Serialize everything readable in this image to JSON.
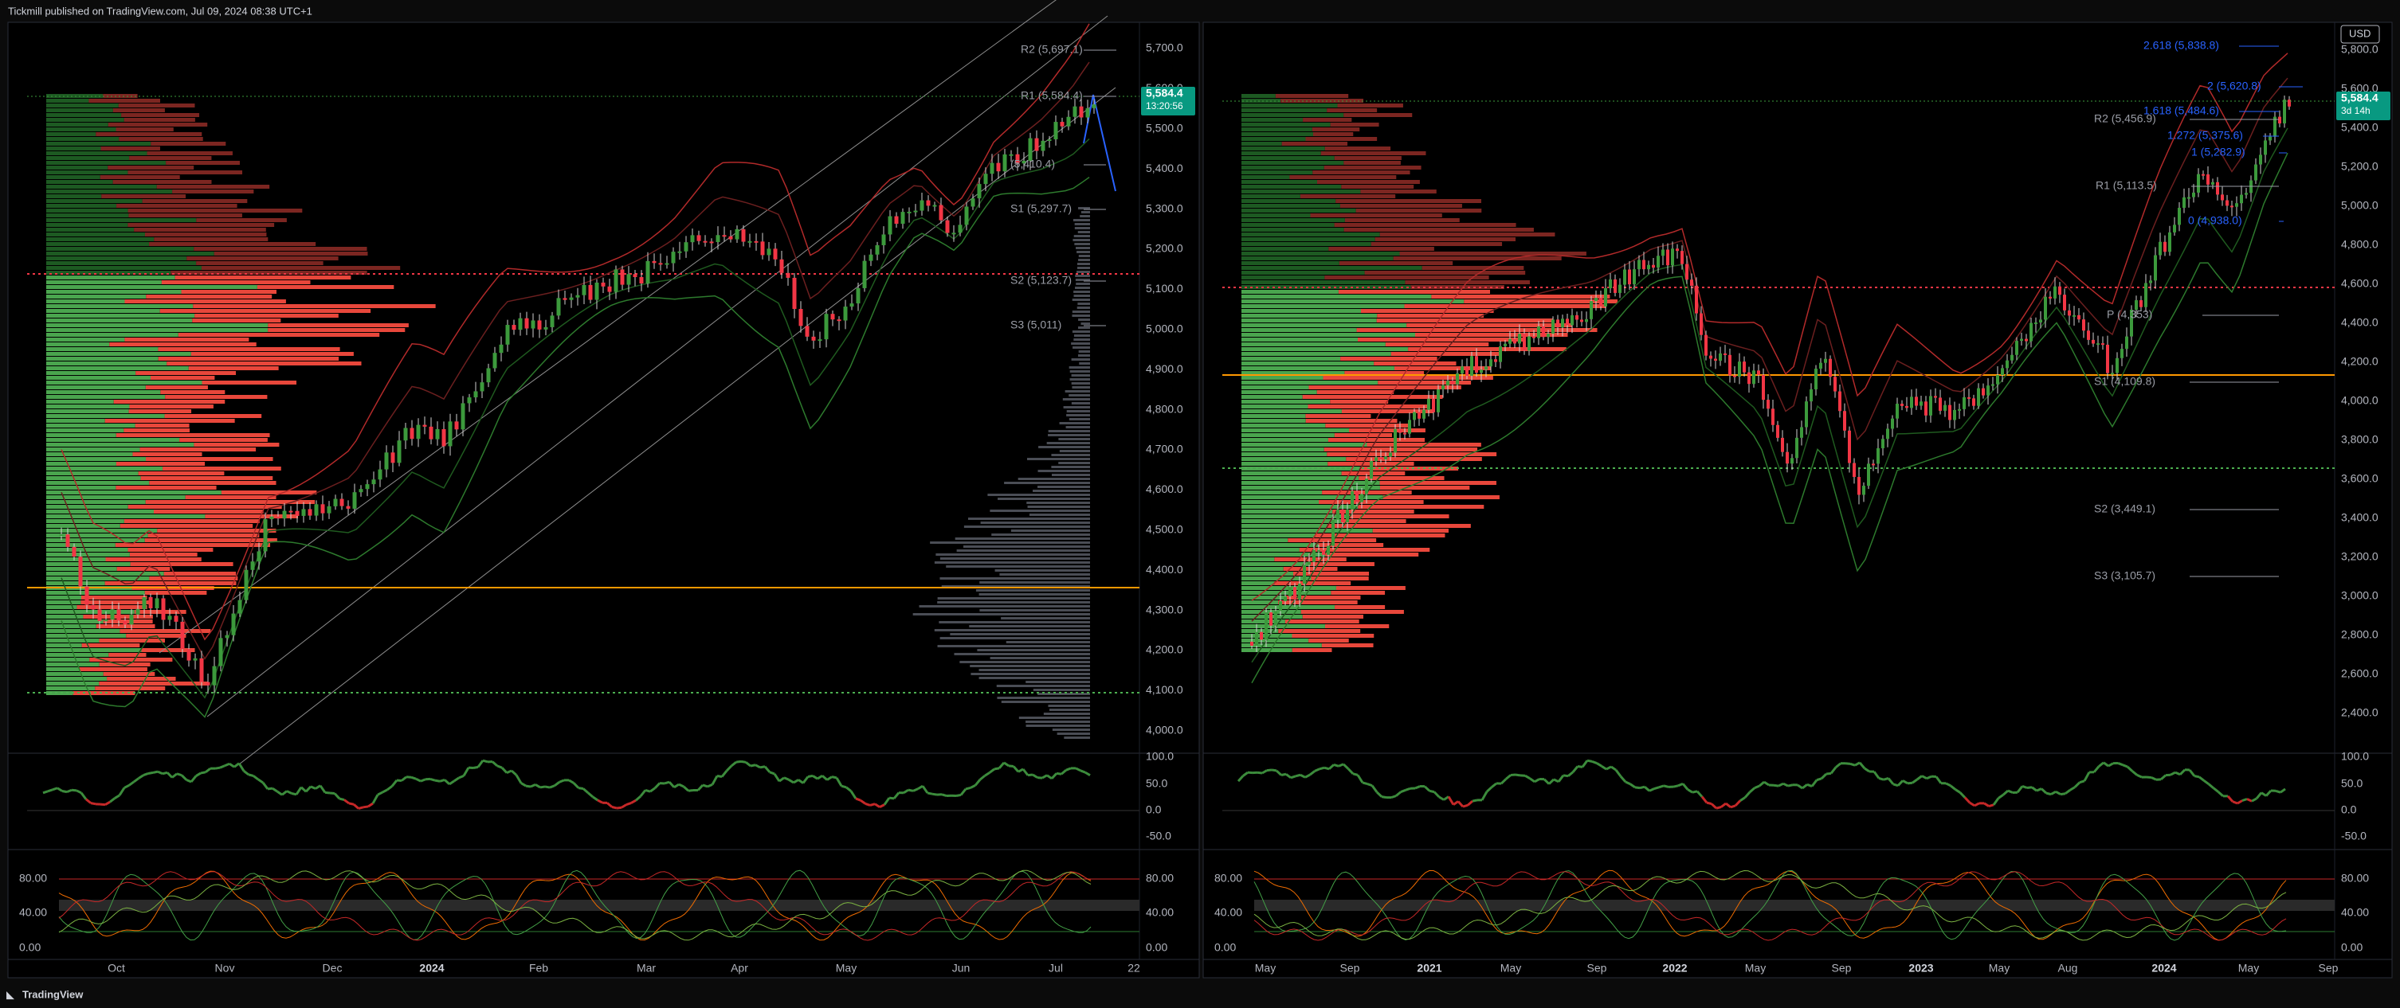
{
  "header": {
    "publisher": "Tickmill published on TradingView.com, Jul 09, 2024 08:38 UTC+1"
  },
  "left_chart": {
    "price_axis": [
      "5,700.0",
      "5,600.0",
      "5,500.0",
      "5,400.0",
      "5,300.0",
      "5,200.0",
      "5,100.0",
      "5,000.0",
      "4,900.0",
      "4,800.0",
      "4,700.0",
      "4,600.0",
      "4,500.0",
      "4,400.0",
      "4,300.0",
      "4,200.0",
      "4,100.0",
      "4,000.0"
    ],
    "price_badge": "5,584.4",
    "countdown": "13:20:56",
    "pivots": [
      "R2 (5,697.1)",
      "R1 (5,584.4)",
      "(5,410.4)",
      "S1 (5,297.7)",
      "S2 (5,123.7)",
      "S3 (5,011)"
    ],
    "rsi_axis": [
      "100.0",
      "50.0",
      "0.0",
      "-50.0"
    ],
    "stoch_axis": [
      "80.00",
      "40.00",
      "0.00"
    ],
    "time_axis": [
      "Oct",
      "Nov",
      "Dec",
      "2024",
      "Feb",
      "Mar",
      "Apr",
      "May",
      "Jun",
      "Jul",
      "22"
    ]
  },
  "right_chart": {
    "currency": "USD",
    "price_axis": [
      "5,800.0",
      "5,600.0",
      "5,400.0",
      "5,200.0",
      "5,000.0",
      "4,800.0",
      "4,600.0",
      "4,400.0",
      "4,200.0",
      "4,000.0",
      "3,800.0",
      "3,600.0",
      "3,400.0",
      "3,200.0",
      "3,000.0",
      "2,800.0",
      "2,600.0",
      "2,400.0"
    ],
    "price_badge": "5,584.4",
    "countdown": "3d 14h",
    "levels": [
      "2.618 (5,838.8)",
      "2 (5,620.8)",
      "1.618 (5,484.6)",
      "R2 (5,456.9)",
      "1.272 (5,375.6)",
      "1 (5,282.9)",
      "R1 (5,113.5)",
      "0 (4,938.0)",
      "P (4,353)",
      "S1 (4,109.8)",
      "S2 (3,449.1)",
      "S3 (3,105.7)"
    ],
    "rsi_axis": [
      "100.0",
      "50.0",
      "0.0",
      "-50.0"
    ],
    "stoch_axis": [
      "80.00",
      "40.00",
      "0.00"
    ],
    "time_axis": [
      "May",
      "Sep",
      "2021",
      "May",
      "Sep",
      "2022",
      "May",
      "Sep",
      "2023",
      "May",
      "Aug",
      "2024",
      "May",
      "Sep"
    ]
  },
  "footer": {
    "brand": "TradingView"
  }
}
